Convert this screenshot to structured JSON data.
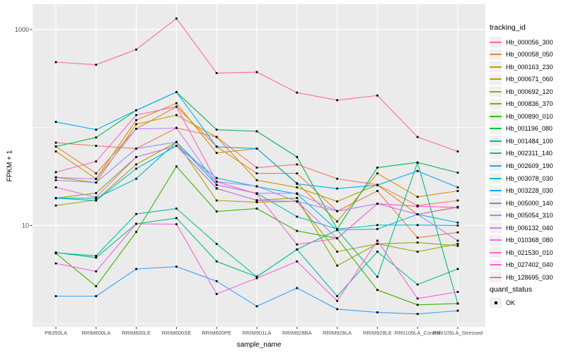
{
  "colors": {
    "panel_bg": "#EBEBEB",
    "grid": "#FFFFFF",
    "tick_text": "#4D4D4D",
    "legend_key_bg": "#F0F0F0",
    "point": "#000000"
  },
  "legend": {
    "tracking_title": "tracking_id",
    "quant_title": "quant_status",
    "quant_items": [
      {
        "label": "OK",
        "marker": "black-square"
      }
    ]
  },
  "chart_data": {
    "type": "line",
    "title": "",
    "xlabel": "sample_name",
    "ylabel": "FPKM + 1",
    "yscale": "log10",
    "ylim": [
      1,
      1600
    ],
    "grid": {
      "major_values": [
        10,
        1000
      ],
      "minor_values": [
        1,
        100
      ]
    },
    "legend_position": "right",
    "marker": {
      "shape": "square",
      "color": "#000000",
      "meaning": "OK"
    },
    "yticks": [
      {
        "label": "1000",
        "value": 1000
      },
      {
        "label": "10",
        "value": 10
      }
    ],
    "categories": [
      "PB350LA",
      "RRIM600LA",
      "RRIM600LE",
      "RRIM600SE",
      "RRIM600PE",
      "RRIM901LA",
      "RRIM928BA",
      "RRIM928LA",
      "RRIM928LE",
      "RRII105LA_Control",
      "RRII105LA_Stressed"
    ],
    "series": [
      {
        "name": "Hb_000056_300",
        "color": "#F8766D",
        "values": [
          70,
          65,
          61,
          99,
          80,
          39,
          42,
          30,
          26,
          16,
          18
        ]
      },
      {
        "name": "Hb_000058_050",
        "color": "#EA8331",
        "values": [
          64,
          34,
          97,
          163,
          64,
          34,
          34,
          14,
          22.5,
          7.5,
          8.5
        ]
      },
      {
        "name": "Hb_000163_230",
        "color": "#D89000",
        "values": [
          57,
          30,
          119,
          177,
          55,
          61,
          27,
          11,
          34,
          19.6,
          22.5
        ]
      },
      {
        "name": "Hb_000671_060",
        "color": "#C09B00",
        "values": [
          31,
          27.4,
          108,
          134,
          80,
          29,
          24.5,
          17.6,
          26,
          13,
          15.5
        ]
      },
      {
        "name": "Hb_000692_120",
        "color": "#A3A500",
        "values": [
          16,
          18.2,
          42,
          71,
          18,
          17.3,
          17.6,
          5.4,
          6.5,
          5.4,
          6.5
        ]
      },
      {
        "name": "Hb_000836_370",
        "color": "#7CAE00",
        "values": [
          19,
          21.4,
          50,
          65,
          23.8,
          18.1,
          19.1,
          3.9,
          6.5,
          6.7,
          6.2
        ]
      },
      {
        "name": "Hb_000890_010",
        "color": "#39B600",
        "values": [
          5.2,
          2.4,
          8.6,
          40,
          13.9,
          14.9,
          8.8,
          7.4,
          2.2,
          1.55,
          1.6
        ]
      },
      {
        "name": "Hb_001196_080",
        "color": "#00BB4E",
        "values": [
          64,
          79,
          150,
          230,
          95,
          91.5,
          50,
          9.2,
          39,
          44,
          34.6
        ]
      },
      {
        "name": "Hb_001484_100",
        "color": "#00BF7D",
        "values": [
          5.3,
          4.7,
          10.4,
          11.9,
          4.3,
          3,
          5.7,
          9,
          3,
          43.8,
          1.6
        ]
      },
      {
        "name": "Hb_002311_140",
        "color": "#00C1A3",
        "values": [
          5.26,
          4.9,
          13.1,
          14.9,
          6.5,
          3,
          5.7,
          1.9,
          5.4,
          2.5,
          3.6
        ]
      },
      {
        "name": "Hb_002609_190",
        "color": "#00BFC4",
        "values": [
          19,
          19,
          30,
          71,
          26,
          21.3,
          12.3,
          9.2,
          10.1,
          10.1,
          10
        ]
      },
      {
        "name": "Hb_003078_030",
        "color": "#00BAE0",
        "values": [
          19,
          18,
          38,
          65,
          30.5,
          25,
          21,
          9,
          9.2,
          13,
          10.7
        ]
      },
      {
        "name": "Hb_003228_030",
        "color": "#00B0F6",
        "values": [
          114,
          95,
          150,
          230,
          63.6,
          61,
          26.6,
          23.8,
          25.8,
          36,
          24.5
        ]
      },
      {
        "name": "Hb_005000_140",
        "color": "#35A2FF",
        "values": [
          1.9,
          1.9,
          3.6,
          3.8,
          2.7,
          1.5,
          2.3,
          1.4,
          1.3,
          1.25,
          1.35
        ]
      },
      {
        "name": "Hb_005054_310",
        "color": "#9590FF",
        "values": [
          29,
          27.4,
          61,
          71,
          28,
          25.2,
          17.6,
          14,
          16.7,
          13,
          7
        ]
      },
      {
        "name": "Hb_006132_040",
        "color": "#C77CFF",
        "values": [
          31,
          29.8,
          97,
          99,
          26,
          21.3,
          21.3,
          14,
          16.7,
          15.7,
          15.3
        ]
      },
      {
        "name": "Hb_010368_080",
        "color": "#E76BF3",
        "values": [
          24.5,
          19.4,
          50,
          65,
          24,
          18,
          17.6,
          7.4,
          16.7,
          13,
          15.3
        ]
      },
      {
        "name": "Hb_021530_010",
        "color": "#FA62DB",
        "values": [
          4.1,
          3.4,
          10.4,
          10.3,
          2,
          2.9,
          4.3,
          1.7,
          7,
          1.8,
          2.1
        ]
      },
      {
        "name": "Hb_027402_040",
        "color": "#FF61CC",
        "values": [
          35,
          45,
          134,
          163,
          28,
          21,
          6.4,
          7.4,
          16.7,
          15.7,
          15.3
        ]
      },
      {
        "name": "Hb_128695_030",
        "color": "#FF6A98",
        "values": [
          465,
          437,
          624,
          1295,
          359,
          368,
          227,
          190,
          212,
          80,
          57
        ]
      }
    ]
  }
}
